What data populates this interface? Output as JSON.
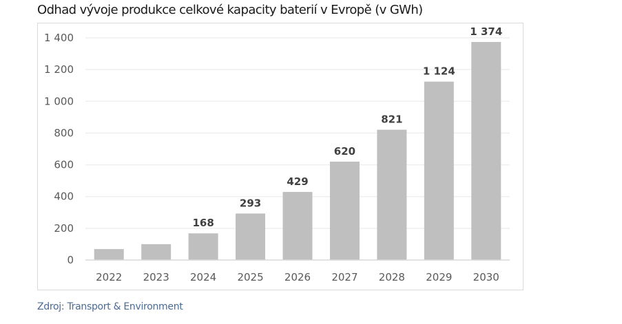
{
  "title": "Odhad vývoje produkce celkové kapacity baterií v Evropě (v GWh)",
  "source": "Zdroj: Transport & Environment",
  "chart_data": {
    "type": "bar",
    "title": "Odhad vývoje produkce celkové kapacity baterií v Evropě (v GWh)",
    "xlabel": "",
    "ylabel": "GWh",
    "categories": [
      "2022",
      "2023",
      "2024",
      "2025",
      "2026",
      "2027",
      "2028",
      "2029",
      "2030"
    ],
    "values": [
      69,
      100,
      168,
      293,
      429,
      620,
      821,
      1124,
      1374
    ],
    "data_labels": [
      "",
      "",
      "168",
      "293",
      "429",
      "620",
      "821",
      "1 124",
      "1 374"
    ],
    "ylim": [
      0,
      1400
    ],
    "yticks": [
      0,
      200,
      400,
      600,
      800,
      1000,
      1200,
      1400
    ],
    "ytick_labels": [
      "0",
      "200",
      "400",
      "600",
      "800",
      "1 000",
      "1 200",
      "1 400"
    ],
    "grid": true,
    "legend": "none",
    "bar_color": "#bfbfbf",
    "grid_color": "#efefef",
    "axis_color": "#d9d9d9"
  }
}
